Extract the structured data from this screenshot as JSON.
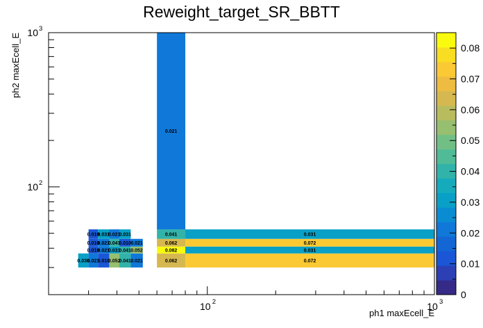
{
  "chart_data": {
    "type": "heatmap",
    "title": "Reweight_target_SR_BBTT",
    "xlabel": "ph1 maxEcell_E",
    "ylabel": "ph2 maxEcell_E",
    "x_scale": "log",
    "y_scale": "log",
    "xlim": [
      20,
      1000
    ],
    "ylim": [
      20,
      1000
    ],
    "x_ticks": [
      {
        "value": 100,
        "base": "10",
        "exp": "2"
      },
      {
        "value": 1000,
        "base": "10",
        "exp": "3"
      }
    ],
    "y_ticks": [
      {
        "value": 100,
        "base": "10",
        "exp": "2"
      },
      {
        "value": 1000,
        "base": "10",
        "exp": "3"
      }
    ],
    "x_bin_edges": [
      27,
      30,
      33,
      37,
      41,
      46,
      52,
      60,
      80,
      1000
    ],
    "y_bin_edges": [
      30,
      37,
      41,
      46,
      53,
      1000
    ],
    "colorbar": {
      "zmin": 0,
      "zmax": 0.085,
      "ticks": [
        0,
        0.01,
        0.02,
        0.03,
        0.04,
        0.05,
        0.06,
        0.07,
        0.08
      ],
      "tick_labels": [
        "0",
        "0.01",
        "0.02",
        "0.03",
        "0.04",
        "0.05",
        "0.06",
        "0.07",
        "0.08"
      ]
    },
    "cells": [
      {
        "xb": 0,
        "yb": 0,
        "value": 0.03,
        "label": "0.030"
      },
      {
        "xb": 1,
        "yb": 0,
        "value": 0.021,
        "label": "0.021"
      },
      {
        "xb": 2,
        "yb": 0,
        "value": 0.01,
        "label": "0.010"
      },
      {
        "xb": 3,
        "yb": 0,
        "value": 0.052,
        "label": "0.052"
      },
      {
        "xb": 4,
        "yb": 0,
        "value": 0.041,
        "label": "0.041"
      },
      {
        "xb": 5,
        "yb": 0,
        "value": 0.021,
        "label": "0.021"
      },
      {
        "xb": 7,
        "yb": 0,
        "value": 0.062,
        "label": "0.062"
      },
      {
        "xb": 8,
        "yb": 0,
        "value": 0.072,
        "label": "0.072"
      },
      {
        "xb": 1,
        "yb": 1,
        "value": 0.01,
        "label": "0.010"
      },
      {
        "xb": 2,
        "yb": 1,
        "value": 0.021,
        "label": "0.021"
      },
      {
        "xb": 3,
        "yb": 1,
        "value": 0.031,
        "label": "0.031"
      },
      {
        "xb": 4,
        "yb": 1,
        "value": 0.041,
        "label": "0.041"
      },
      {
        "xb": 5,
        "yb": 1,
        "value": 0.052,
        "label": "0.052"
      },
      {
        "xb": 7,
        "yb": 1,
        "value": 0.082,
        "label": "0.082"
      },
      {
        "xb": 8,
        "yb": 1,
        "value": 0.031,
        "label": "0.031"
      },
      {
        "xb": 1,
        "yb": 2,
        "value": 0.01,
        "label": "0.010"
      },
      {
        "xb": 2,
        "yb": 2,
        "value": 0.021,
        "label": "0.021"
      },
      {
        "xb": 3,
        "yb": 2,
        "value": 0.041,
        "label": "0.041"
      },
      {
        "xb": 4,
        "yb": 2,
        "value": 0.01,
        "label": "0.010"
      },
      {
        "xb": 5,
        "yb": 2,
        "value": 0.021,
        "label": "0.021"
      },
      {
        "xb": 7,
        "yb": 2,
        "value": 0.062,
        "label": "0.062"
      },
      {
        "xb": 8,
        "yb": 2,
        "value": 0.072,
        "label": "0.072"
      },
      {
        "xb": 1,
        "yb": 3,
        "value": 0.01,
        "label": "0.010"
      },
      {
        "xb": 2,
        "yb": 3,
        "value": 0.031,
        "label": "0.031"
      },
      {
        "xb": 3,
        "yb": 3,
        "value": 0.021,
        "label": "0.021"
      },
      {
        "xb": 4,
        "yb": 3,
        "value": 0.031,
        "label": "0.031"
      },
      {
        "xb": 7,
        "yb": 3,
        "value": 0.041,
        "label": "0.041"
      },
      {
        "xb": 8,
        "yb": 3,
        "value": 0.031,
        "label": "0.031"
      },
      {
        "xb": 7,
        "yb": 4,
        "value": 0.021,
        "label": "0.021"
      }
    ],
    "palette": [
      "#352a87",
      "#2c3fb5",
      "#1a56d6",
      "#1366d4",
      "#0f78d9",
      "#0a8cd2",
      "#08a0c6",
      "#15abbc",
      "#32b3a9",
      "#50bb97",
      "#72bf85",
      "#96bf6f",
      "#b9bc5e",
      "#d6b850",
      "#edbc40",
      "#fbc934",
      "#f9dd23",
      "#f9fb0e"
    ]
  }
}
